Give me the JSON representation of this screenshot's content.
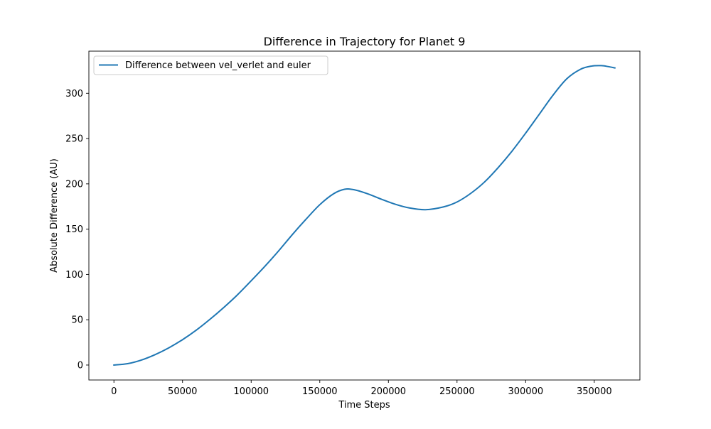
{
  "chart_data": {
    "type": "line",
    "title": "Difference in Trajectory for Planet 9",
    "xlabel": "Time Steps",
    "ylabel": "Absolute Difference (AU)",
    "xlim": [
      -18250,
      383250
    ],
    "ylim": [
      -16.5,
      346.5
    ],
    "xticks": [
      0,
      50000,
      100000,
      150000,
      200000,
      250000,
      300000,
      350000
    ],
    "xtick_labels": [
      "0",
      "50000",
      "100000",
      "150000",
      "200000",
      "250000",
      "300000",
      "350000"
    ],
    "yticks": [
      0,
      50,
      100,
      150,
      200,
      250,
      300
    ],
    "ytick_labels": [
      "0",
      "50",
      "100",
      "150",
      "200",
      "250",
      "300"
    ],
    "grid": false,
    "legend_position": "top-left",
    "series": [
      {
        "name": "Difference between vel_verlet and euler",
        "color": "#1f77b4",
        "x": [
          0,
          10000,
          20000,
          30000,
          40000,
          50000,
          60000,
          70000,
          80000,
          90000,
          100000,
          110000,
          120000,
          130000,
          140000,
          150000,
          160000,
          168000,
          175000,
          185000,
          195000,
          205000,
          215000,
          227000,
          240000,
          250000,
          260000,
          270000,
          280000,
          290000,
          300000,
          310000,
          320000,
          330000,
          340000,
          348000,
          355000,
          360000,
          365000
        ],
        "y": [
          0,
          1.5,
          5.5,
          11.5,
          19,
          28,
          38.5,
          50.5,
          63.5,
          77.5,
          93,
          109,
          126,
          144,
          161,
          177,
          189,
          194,
          193.5,
          189,
          183,
          177.5,
          173.5,
          171.5,
          174.5,
          180,
          189.5,
          202,
          218,
          236,
          256,
          277,
          298,
          316,
          326.5,
          330,
          330.5,
          329.5,
          328
        ]
      }
    ]
  }
}
